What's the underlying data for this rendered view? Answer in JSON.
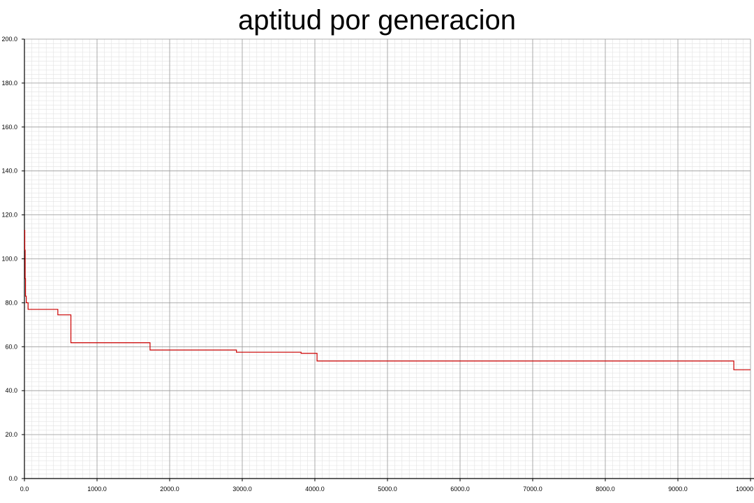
{
  "chart_data": {
    "type": "line",
    "title": "aptitud por generacion",
    "xlabel": "",
    "ylabel": "",
    "xlim": [
      0,
      10000
    ],
    "ylim": [
      0,
      200
    ],
    "grid": true,
    "x_ticks": [
      0,
      1000,
      2000,
      3000,
      4000,
      5000,
      6000,
      7000,
      8000,
      9000,
      10000
    ],
    "y_ticks": [
      0,
      20,
      40,
      60,
      80,
      100,
      120,
      140,
      160,
      180,
      200
    ],
    "x_tick_labels": [
      "0.0",
      "1000.0",
      "2000.0",
      "3000.0",
      "4000.0",
      "5000.0",
      "6000.0",
      "7000.0",
      "8000.0",
      "9000.0",
      "10000"
    ],
    "y_tick_labels": [
      "0.0",
      "20.0",
      "40.0",
      "60.0",
      "80.0",
      "100.0",
      "120.0",
      "140.0",
      "160.0",
      "180.0",
      "200.0"
    ],
    "series": [
      {
        "color": "#cc0000",
        "step": true,
        "x": [
          0,
          5,
          10,
          15,
          25,
          50,
          460,
          640,
          1730,
          2920,
          3810,
          4030,
          9770,
          10000
        ],
        "y": [
          113,
          104,
          91,
          83,
          80,
          77,
          74.5,
          61.8,
          58.5,
          57.5,
          57,
          53.5,
          49.5,
          49.5
        ]
      }
    ]
  }
}
